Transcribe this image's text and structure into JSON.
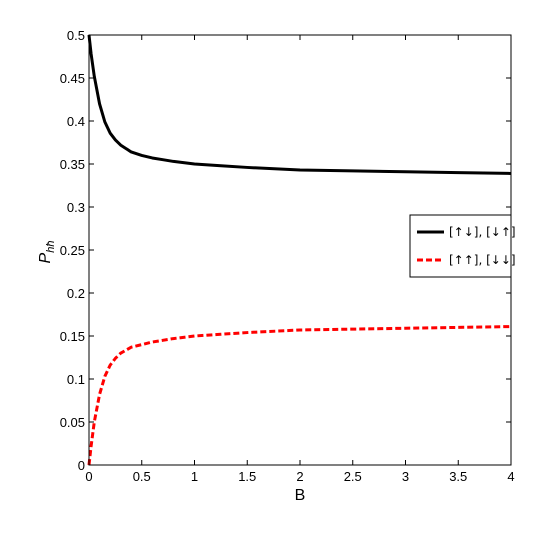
{
  "chart_data": {
    "type": "line",
    "xlabel": "B",
    "ylabel": "P_{hħ}",
    "ylabel_main": "P",
    "ylabel_sub": "hħ",
    "xlim": [
      0,
      4
    ],
    "ylim": [
      0,
      0.5
    ],
    "xticks": [
      0,
      0.5,
      1,
      1.5,
      2,
      2.5,
      3,
      3.5,
      4
    ],
    "xtick_labels": [
      "0",
      "0.5",
      "1",
      "1.5",
      "2",
      "2.5",
      "3",
      "3.5",
      "4"
    ],
    "yticks": [
      0,
      0.05,
      0.1,
      0.15,
      0.2,
      0.25,
      0.3,
      0.35,
      0.4,
      0.45,
      0.5
    ],
    "ytick_labels": [
      "0",
      "0.05",
      "0.1",
      "0.15",
      "0.2",
      "0.25",
      "0.3",
      "0.35",
      "0.4",
      "0.45",
      "0.5"
    ],
    "grid": false,
    "legend_position": "right",
    "x": [
      0,
      0.02,
      0.05,
      0.1,
      0.15,
      0.2,
      0.25,
      0.3,
      0.4,
      0.5,
      0.6,
      0.7,
      0.8,
      1.0,
      1.25,
      1.5,
      2.0,
      2.5,
      3.0,
      3.5,
      4.0
    ],
    "series": [
      {
        "name": "[↑↓],  [↓↑]",
        "color": "#000000",
        "dash": "solid",
        "values": [
          0.5,
          0.478,
          0.452,
          0.42,
          0.399,
          0.386,
          0.378,
          0.372,
          0.364,
          0.36,
          0.357,
          0.355,
          0.353,
          0.35,
          0.348,
          0.346,
          0.343,
          0.342,
          0.341,
          0.34,
          0.339
        ]
      },
      {
        "name": "[↑↑],  [↓↓]",
        "color": "#ff0000",
        "dash": "dashed",
        "values": [
          0.0,
          0.022,
          0.05,
          0.082,
          0.103,
          0.116,
          0.124,
          0.13,
          0.137,
          0.14,
          0.143,
          0.145,
          0.147,
          0.15,
          0.152,
          0.154,
          0.157,
          0.158,
          0.159,
          0.16,
          0.161
        ]
      }
    ]
  }
}
